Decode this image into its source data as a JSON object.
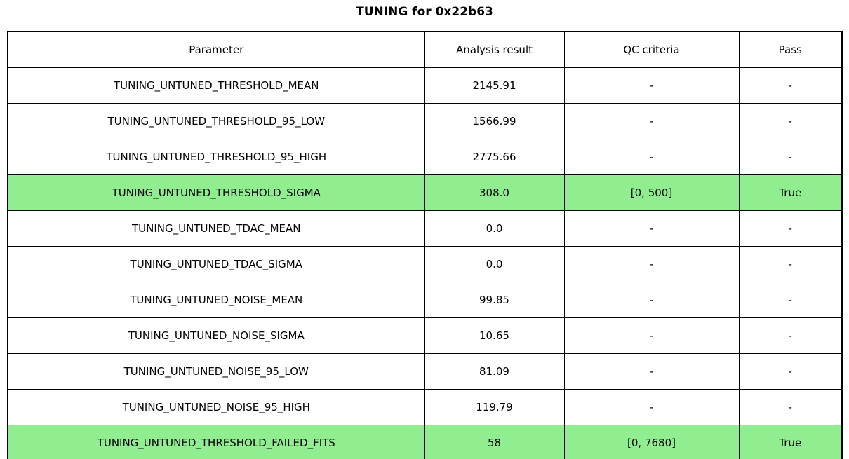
{
  "chart_data": {
    "type": "table",
    "title": "TUNING for 0x22b63",
    "columns": [
      "Parameter",
      "Analysis result",
      "QC criteria",
      "Pass"
    ],
    "rows": [
      {
        "parameter": "TUNING_UNTUNED_THRESHOLD_MEAN",
        "analysis_result": "2145.91",
        "qc_criteria": "-",
        "pass": "-",
        "highlighted": false
      },
      {
        "parameter": "TUNING_UNTUNED_THRESHOLD_95_LOW",
        "analysis_result": "1566.99",
        "qc_criteria": "-",
        "pass": "-",
        "highlighted": false
      },
      {
        "parameter": "TUNING_UNTUNED_THRESHOLD_95_HIGH",
        "analysis_result": "2775.66",
        "qc_criteria": "-",
        "pass": "-",
        "highlighted": false
      },
      {
        "parameter": "TUNING_UNTUNED_THRESHOLD_SIGMA",
        "analysis_result": "308.0",
        "qc_criteria": "[0, 500]",
        "pass": "True",
        "highlighted": true
      },
      {
        "parameter": "TUNING_UNTUNED_TDAC_MEAN",
        "analysis_result": "0.0",
        "qc_criteria": "-",
        "pass": "-",
        "highlighted": false
      },
      {
        "parameter": "TUNING_UNTUNED_TDAC_SIGMA",
        "analysis_result": "0.0",
        "qc_criteria": "-",
        "pass": "-",
        "highlighted": false
      },
      {
        "parameter": "TUNING_UNTUNED_NOISE_MEAN",
        "analysis_result": "99.85",
        "qc_criteria": "-",
        "pass": "-",
        "highlighted": false
      },
      {
        "parameter": "TUNING_UNTUNED_NOISE_SIGMA",
        "analysis_result": "10.65",
        "qc_criteria": "-",
        "pass": "-",
        "highlighted": false
      },
      {
        "parameter": "TUNING_UNTUNED_NOISE_95_LOW",
        "analysis_result": "81.09",
        "qc_criteria": "-",
        "pass": "-",
        "highlighted": false
      },
      {
        "parameter": "TUNING_UNTUNED_NOISE_95_HIGH",
        "analysis_result": "119.79",
        "qc_criteria": "-",
        "pass": "-",
        "highlighted": false
      },
      {
        "parameter": "TUNING_UNTUNED_THRESHOLD_FAILED_FITS",
        "analysis_result": "58",
        "qc_criteria": "[0, 7680]",
        "pass": "True",
        "highlighted": true
      }
    ],
    "layout": {
      "highlight_color": "#90EE90",
      "border_color": "#000000",
      "background_color": "#FFFFFF",
      "text_color": "#000000",
      "title_position": "top-center",
      "grid": "all-cell-borders"
    }
  }
}
